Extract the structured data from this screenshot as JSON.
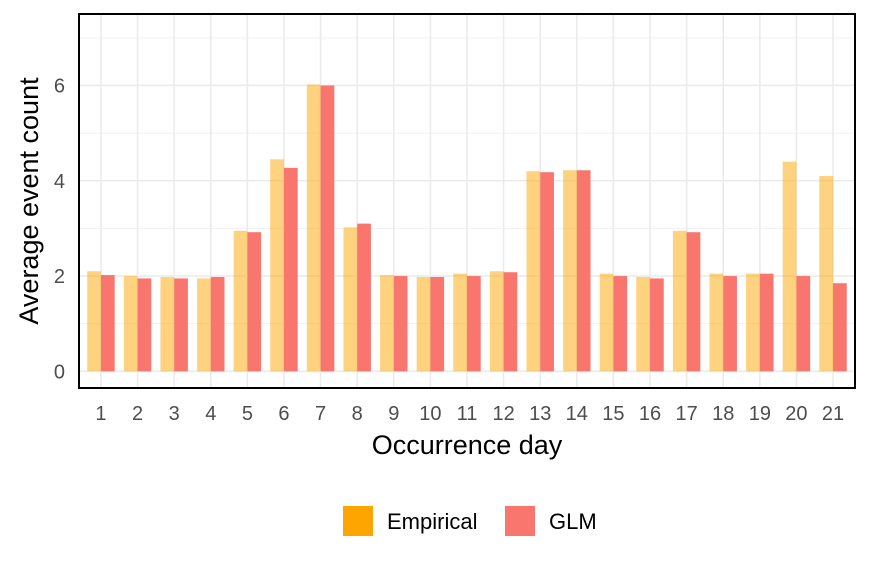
{
  "chart_data": {
    "type": "bar",
    "title": "",
    "xlabel": "Occurrence day",
    "ylabel": "Average event count",
    "categories": [
      "1",
      "2",
      "3",
      "4",
      "5",
      "6",
      "7",
      "8",
      "9",
      "10",
      "11",
      "12",
      "13",
      "14",
      "15",
      "16",
      "17",
      "18",
      "19",
      "20",
      "21"
    ],
    "series": [
      {
        "name": "Empirical",
        "color": "#FFA500",
        "opacity": 0.5,
        "values": [
          2.1,
          2.0,
          1.98,
          1.95,
          2.95,
          4.45,
          6.02,
          3.02,
          2.02,
          1.98,
          2.05,
          2.1,
          4.2,
          4.22,
          2.05,
          1.98,
          2.95,
          2.05,
          2.05,
          4.4,
          4.1
        ]
      },
      {
        "name": "GLM",
        "color": "#F8766D",
        "opacity": 1,
        "values": [
          2.02,
          1.95,
          1.95,
          1.98,
          2.92,
          4.27,
          6.0,
          3.1,
          2.0,
          1.98,
          2.0,
          2.08,
          4.18,
          4.22,
          2.0,
          1.95,
          2.92,
          2.0,
          2.05,
          2.0,
          1.85
        ]
      }
    ],
    "ylim": [
      -0.35,
      7.5
    ],
    "yticks": [
      0,
      2,
      4,
      6
    ],
    "grid": true,
    "legend_position": "bottom"
  }
}
